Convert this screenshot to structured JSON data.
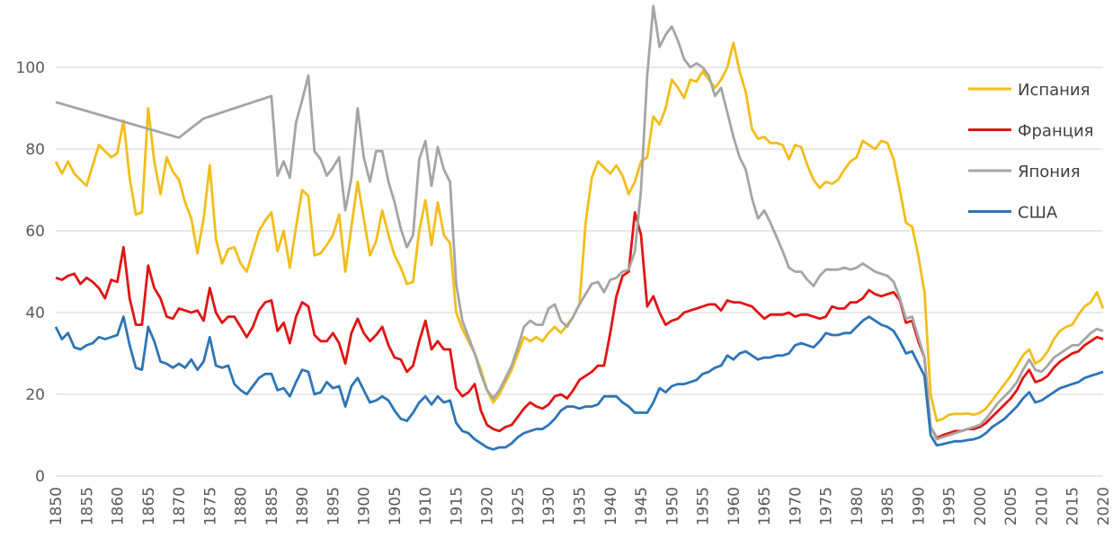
{
  "chart_data": {
    "type": "line",
    "title": "",
    "xlabel": "",
    "ylabel": "",
    "x_start": 1850,
    "x_end": 2020,
    "xlim": [
      1850,
      2020
    ],
    "ylim": [
      0,
      116
    ],
    "y_ticks": [
      0,
      20,
      40,
      60,
      80,
      100
    ],
    "x_ticks": [
      1850,
      1855,
      1860,
      1865,
      1870,
      1875,
      1880,
      1885,
      1890,
      1895,
      1900,
      1905,
      1910,
      1915,
      1920,
      1925,
      1930,
      1935,
      1940,
      1945,
      1950,
      1955,
      1960,
      1965,
      1970,
      1975,
      1980,
      1985,
      1990,
      1995,
      2000,
      2005,
      2010,
      2015,
      2020
    ],
    "grid": "horizontal",
    "legend_position": "right",
    "series": [
      {
        "name": "Испания",
        "color": "#F2BE1A",
        "values": [
          77,
          74,
          77,
          74,
          72.5,
          71,
          76,
          81,
          79.5,
          78,
          79,
          87,
          73,
          64,
          64.5,
          90,
          77,
          69,
          78,
          74.5,
          72.5,
          67,
          63,
          54.5,
          63,
          76,
          58,
          52,
          55.5,
          56,
          52,
          50,
          55,
          60,
          62.5,
          64.5,
          55,
          60,
          51,
          61,
          70,
          68.5,
          54,
          54.5,
          56.5,
          59,
          64,
          50,
          61,
          72,
          63,
          54,
          57.5,
          65,
          59,
          54,
          51,
          47,
          47.5,
          60,
          67.5,
          56.5,
          67,
          59,
          57,
          40,
          36,
          33,
          30,
          26,
          21,
          18,
          20,
          23,
          26,
          30,
          34,
          33,
          34,
          33,
          35,
          36.5,
          35,
          37,
          39,
          42,
          62,
          73,
          77,
          75.5,
          74,
          76,
          73.5,
          69,
          72,
          77,
          78,
          88,
          86,
          90,
          97,
          95,
          92.5,
          97,
          96.5,
          99,
          97,
          95,
          97,
          100,
          106,
          99,
          94,
          85,
          82.5,
          83,
          81.5,
          81.5,
          81,
          77.5,
          81,
          80.5,
          76,
          72.5,
          70.5,
          72,
          71.5,
          72.5,
          75,
          77,
          78,
          82,
          81,
          80,
          82,
          81.5,
          77.5,
          70,
          62,
          61,
          54,
          45,
          20,
          13.5,
          14,
          15,
          15.2,
          15.2,
          15.3,
          15,
          15.5,
          16.5,
          18.5,
          20.5,
          22.5,
          24.5,
          27,
          29.5,
          31,
          27.5,
          28.5,
          30.5,
          33.5,
          35.5,
          36.5,
          37,
          39.5,
          41.5,
          42.5,
          45,
          41
        ]
      },
      {
        "name": "Франция",
        "color": "#E01515",
        "values": [
          48.5,
          48,
          49,
          49.5,
          47,
          48.5,
          47.5,
          46,
          43.5,
          48,
          47.5,
          56,
          43.5,
          37,
          37,
          51.5,
          46,
          43.5,
          39,
          38.5,
          41,
          40.5,
          40,
          40.5,
          38,
          46,
          40,
          37.5,
          39,
          39,
          36.5,
          34,
          36.5,
          40.5,
          42.5,
          43,
          35.5,
          37.5,
          32.5,
          39,
          42.5,
          41.5,
          34.5,
          33,
          33,
          35,
          32.5,
          27.5,
          35,
          38.5,
          35,
          33,
          34.5,
          36.5,
          32,
          29,
          28.5,
          25.5,
          27,
          33,
          38,
          31,
          33,
          31,
          31,
          21.5,
          19.5,
          20.5,
          22.5,
          16,
          12.5,
          11.5,
          11,
          12,
          12.5,
          14.5,
          16.5,
          18,
          17,
          16.5,
          17.5,
          19.5,
          20,
          19,
          21,
          23.5,
          24.5,
          25.5,
          27,
          27,
          35,
          44,
          49,
          50,
          64.5,
          59,
          41.5,
          44,
          40,
          37,
          38,
          38.5,
          40,
          40.5,
          41,
          41.5,
          42,
          42,
          40.5,
          43,
          42.5,
          42.5,
          42,
          41.5,
          40,
          38.5,
          39.5,
          39.5,
          39.5,
          40,
          39,
          39.5,
          39.5,
          39,
          38.5,
          39,
          41.5,
          41,
          41,
          42.5,
          42.5,
          43.5,
          45.5,
          44.5,
          44,
          44.5,
          45,
          43,
          37.5,
          38,
          33,
          29,
          12,
          9.3,
          10,
          10.5,
          11,
          11,
          11.5,
          11.5,
          12,
          13,
          14.5,
          16,
          17.5,
          19,
          21,
          24,
          26,
          23,
          23.5,
          24.5,
          26.5,
          28,
          29,
          30,
          30.5,
          32,
          33,
          34,
          33.5
        ]
      },
      {
        "name": "Япония",
        "color": "#A5A5A5",
        "values": [
          91.5,
          null,
          null,
          null,
          null,
          null,
          null,
          null,
          null,
          null,
          null,
          null,
          null,
          null,
          null,
          null,
          null,
          null,
          null,
          null,
          82.8,
          null,
          null,
          null,
          87.5,
          null,
          null,
          null,
          null,
          null,
          null,
          null,
          null,
          null,
          null,
          93,
          73.5,
          77,
          73,
          86.5,
          92,
          98,
          79.5,
          77.5,
          73.5,
          75.5,
          78,
          65,
          73,
          90,
          78,
          72,
          79.5,
          79.5,
          72,
          67,
          60.5,
          56,
          59,
          77.5,
          82,
          71,
          80.5,
          75,
          72,
          47,
          38,
          34,
          30,
          25,
          21,
          19,
          21,
          24,
          27,
          31.5,
          36.5,
          38,
          37,
          37,
          41,
          42,
          38,
          36.5,
          39,
          42,
          44.5,
          47,
          47.5,
          45,
          48,
          48.5,
          50,
          50.5,
          55,
          70,
          98,
          115,
          105,
          108,
          110,
          106.5,
          102,
          100,
          101,
          100,
          98,
          93,
          95,
          89,
          83,
          78,
          75,
          68,
          63,
          65,
          62,
          58.5,
          55,
          51,
          50,
          50,
          48,
          46.5,
          49,
          50.5,
          50.5,
          50.5,
          51,
          50.5,
          51,
          52,
          51,
          50,
          49.5,
          49,
          47.5,
          43.5,
          38.5,
          39,
          34,
          29,
          12,
          9,
          9.5,
          10,
          10.5,
          11,
          11.5,
          12,
          12.5,
          14,
          16,
          18,
          19.5,
          21,
          23,
          26,
          28.5,
          26,
          25.5,
          27,
          29,
          30,
          31,
          32,
          32,
          33.5,
          35,
          36,
          35.5
        ]
      },
      {
        "name": "США",
        "color": "#2E75B6",
        "values": [
          36.5,
          33.5,
          35,
          31.5,
          31,
          32,
          32.5,
          34,
          33.5,
          34,
          34.5,
          39,
          32,
          26.5,
          26,
          36.5,
          33,
          28,
          27.5,
          26.5,
          27.5,
          26.5,
          28.5,
          26,
          28,
          34,
          27,
          26.5,
          27,
          22.5,
          21,
          20,
          22,
          24,
          25,
          25,
          21,
          21.5,
          19.5,
          23,
          26,
          25.5,
          20,
          20.5,
          23,
          21.5,
          22,
          17,
          22,
          24,
          21,
          18,
          18.5,
          19.5,
          18.5,
          16,
          14,
          13.5,
          15.5,
          18,
          19.5,
          17.5,
          19.5,
          18,
          18.5,
          13,
          11,
          10.5,
          9,
          8,
          7,
          6.5,
          7,
          7,
          8,
          9.5,
          10.5,
          11,
          11.5,
          11.5,
          12.5,
          14,
          16,
          17,
          17,
          16.5,
          17,
          17,
          17.5,
          19.5,
          19.5,
          19.5,
          18,
          17,
          15.5,
          15.5,
          15.5,
          18,
          21.5,
          20.5,
          22,
          22.5,
          22.5,
          23,
          23.5,
          25,
          25.5,
          26.5,
          27,
          29.5,
          28.5,
          30,
          30.5,
          29.5,
          28.5,
          29,
          29,
          29.5,
          29.5,
          30,
          32,
          32.5,
          32,
          31.5,
          33,
          35,
          34.5,
          34.5,
          35,
          35,
          36.5,
          38,
          39,
          38,
          37,
          36.5,
          35.5,
          33,
          30,
          30.5,
          27.5,
          24.5,
          10,
          7.5,
          7.8,
          8.2,
          8.5,
          8.5,
          8.8,
          9,
          9.5,
          10.5,
          12,
          13,
          14,
          15.5,
          17,
          19,
          20.5,
          18,
          18.5,
          19.5,
          20.5,
          21.5,
          22,
          22.5,
          23,
          24,
          24.5,
          25,
          25.5
        ]
      }
    ]
  }
}
